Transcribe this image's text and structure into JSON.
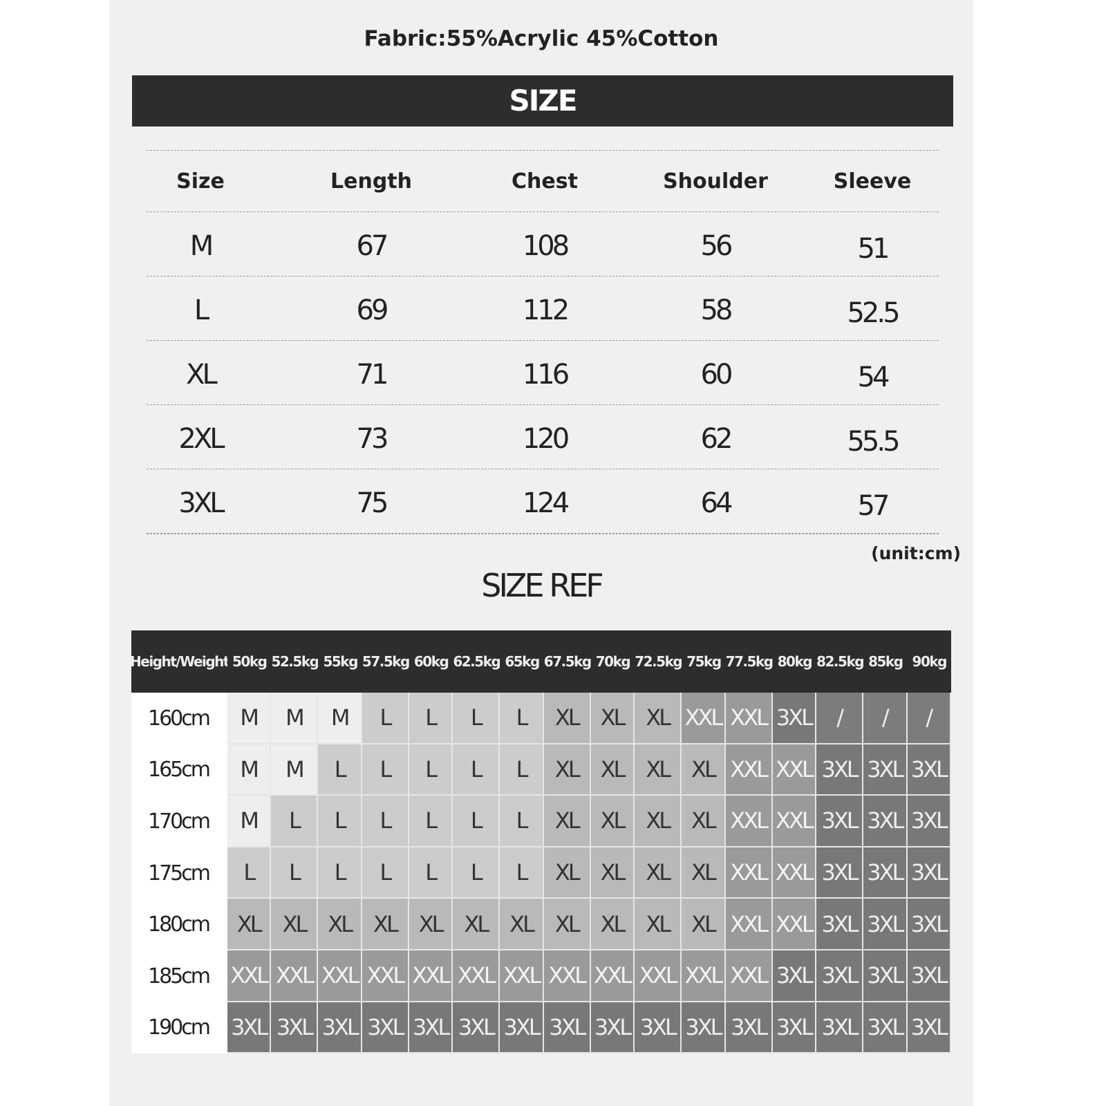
{
  "fabric": "Fabric:55%Acrylic 45%Cotton",
  "size_banner": "SIZE",
  "measurements": {
    "headers": [
      "Size",
      "Length",
      "Chest",
      "Shoulder",
      "Sleeve"
    ],
    "rows": [
      [
        "M",
        "67",
        "108",
        "56",
        "51"
      ],
      [
        "L",
        "69",
        "112",
        "58",
        "52.5"
      ],
      [
        "XL",
        "71",
        "116",
        "60",
        "54"
      ],
      [
        "2XL",
        "73",
        "120",
        "62",
        "55.5"
      ],
      [
        "3XL",
        "75",
        "124",
        "64",
        "57"
      ]
    ],
    "unit": "(unit:cm)"
  },
  "size_ref": {
    "title": "SIZE REF",
    "corner": "Height/Weight",
    "weights": [
      "50kg",
      "52.5kg",
      "55kg",
      "57.5kg",
      "60kg",
      "62.5kg",
      "65kg",
      "67.5kg",
      "70kg",
      "72.5kg",
      "75kg",
      "77.5kg",
      "80kg",
      "82.5kg",
      "85kg",
      "90kg"
    ],
    "rows": [
      {
        "height": "160cm",
        "sizes": [
          "M",
          "M",
          "M",
          "L",
          "L",
          "L",
          "L",
          "XL",
          "XL",
          "XL",
          "XXL",
          "XXL",
          "3XL",
          "/",
          "/",
          "/"
        ]
      },
      {
        "height": "165cm",
        "sizes": [
          "M",
          "M",
          "L",
          "L",
          "L",
          "L",
          "L",
          "XL",
          "XL",
          "XL",
          "XL",
          "XXL",
          "XXL",
          "3XL",
          "3XL",
          "3XL"
        ]
      },
      {
        "height": "170cm",
        "sizes": [
          "M",
          "L",
          "L",
          "L",
          "L",
          "L",
          "L",
          "XL",
          "XL",
          "XL",
          "XL",
          "XXL",
          "XXL",
          "3XL",
          "3XL",
          "3XL"
        ]
      },
      {
        "height": "175cm",
        "sizes": [
          "L",
          "L",
          "L",
          "L",
          "L",
          "L",
          "L",
          "XL",
          "XL",
          "XL",
          "XL",
          "XXL",
          "XXL",
          "3XL",
          "3XL",
          "3XL"
        ]
      },
      {
        "height": "180cm",
        "sizes": [
          "XL",
          "XL",
          "XL",
          "XL",
          "XL",
          "XL",
          "XL",
          "XL",
          "XL",
          "XL",
          "XL",
          "XXL",
          "XXL",
          "3XL",
          "3XL",
          "3XL"
        ]
      },
      {
        "height": "185cm",
        "sizes": [
          "XXL",
          "XXL",
          "XXL",
          "XXL",
          "XXL",
          "XXL",
          "XXL",
          "XXL",
          "XXL",
          "XXL",
          "XXL",
          "XXL",
          "3XL",
          "3XL",
          "3XL",
          "3XL"
        ]
      },
      {
        "height": "190cm",
        "sizes": [
          "3XL",
          "3XL",
          "3XL",
          "3XL",
          "3XL",
          "3XL",
          "3XL",
          "3XL",
          "3XL",
          "3XL",
          "3XL",
          "3XL",
          "3XL",
          "3XL",
          "3XL",
          "3XL"
        ]
      }
    ],
    "size_colors": {
      "M": {
        "bg": "#eeeeee",
        "fg": "#333333"
      },
      "L": {
        "bg": "#cccccc",
        "fg": "#333333"
      },
      "XL": {
        "bg": "#b9b9b9",
        "fg": "#333333"
      },
      "XXL": {
        "bg": "#9a9a9a",
        "fg": "#f4f4f4"
      },
      "3XL": {
        "bg": "#787878",
        "fg": "#eeeeee"
      },
      "/": {
        "bg": "#7c7c7c",
        "fg": "#eeeeee"
      }
    }
  }
}
